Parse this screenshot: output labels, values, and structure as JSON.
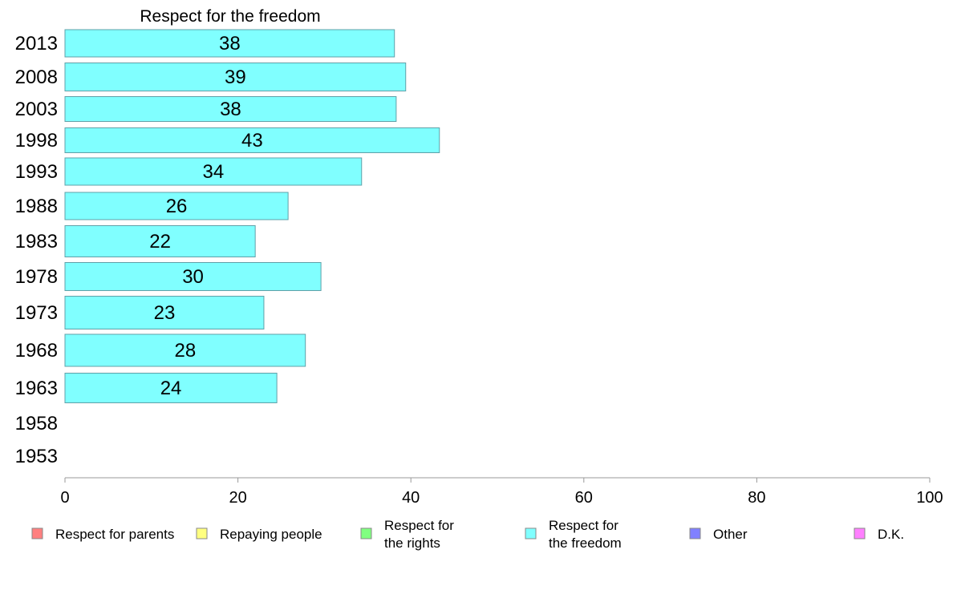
{
  "chart_data": {
    "type": "bar",
    "orientation": "horizontal",
    "title": "Respect for the freedom",
    "categories": [
      "2013",
      "2008",
      "2003",
      "1998",
      "1993",
      "1988",
      "1983",
      "1978",
      "1973",
      "1968",
      "1963",
      "1958",
      "1953"
    ],
    "series": [
      {
        "name": "Respect for the freedom",
        "color": "#80ffff",
        "values": [
          38.1,
          39.4,
          38.3,
          43.3,
          34.3,
          25.8,
          22.0,
          29.6,
          23.0,
          27.8,
          24.5,
          null,
          null
        ],
        "labels": [
          "38",
          "39",
          "38",
          "43",
          "34",
          "26",
          "22",
          "30",
          "23",
          "28",
          "24",
          "",
          ""
        ]
      }
    ],
    "xlim": [
      0,
      100
    ],
    "xticks": [
      "0",
      "20",
      "40",
      "60",
      "80",
      "100"
    ],
    "grid": false,
    "legend": {
      "placement": "bottom",
      "items": [
        {
          "label": "Respect for parents",
          "color": "#ff8080"
        },
        {
          "label": "Repaying people",
          "color": "#ffff80"
        },
        {
          "label": "Respect for the rights",
          "color": "#80ff80"
        },
        {
          "label": "Respect for the freedom",
          "color": "#80ffff"
        },
        {
          "label": "Other",
          "color": "#8080ff"
        },
        {
          "label": "D.K.",
          "color": "#ff80ff"
        }
      ]
    }
  }
}
